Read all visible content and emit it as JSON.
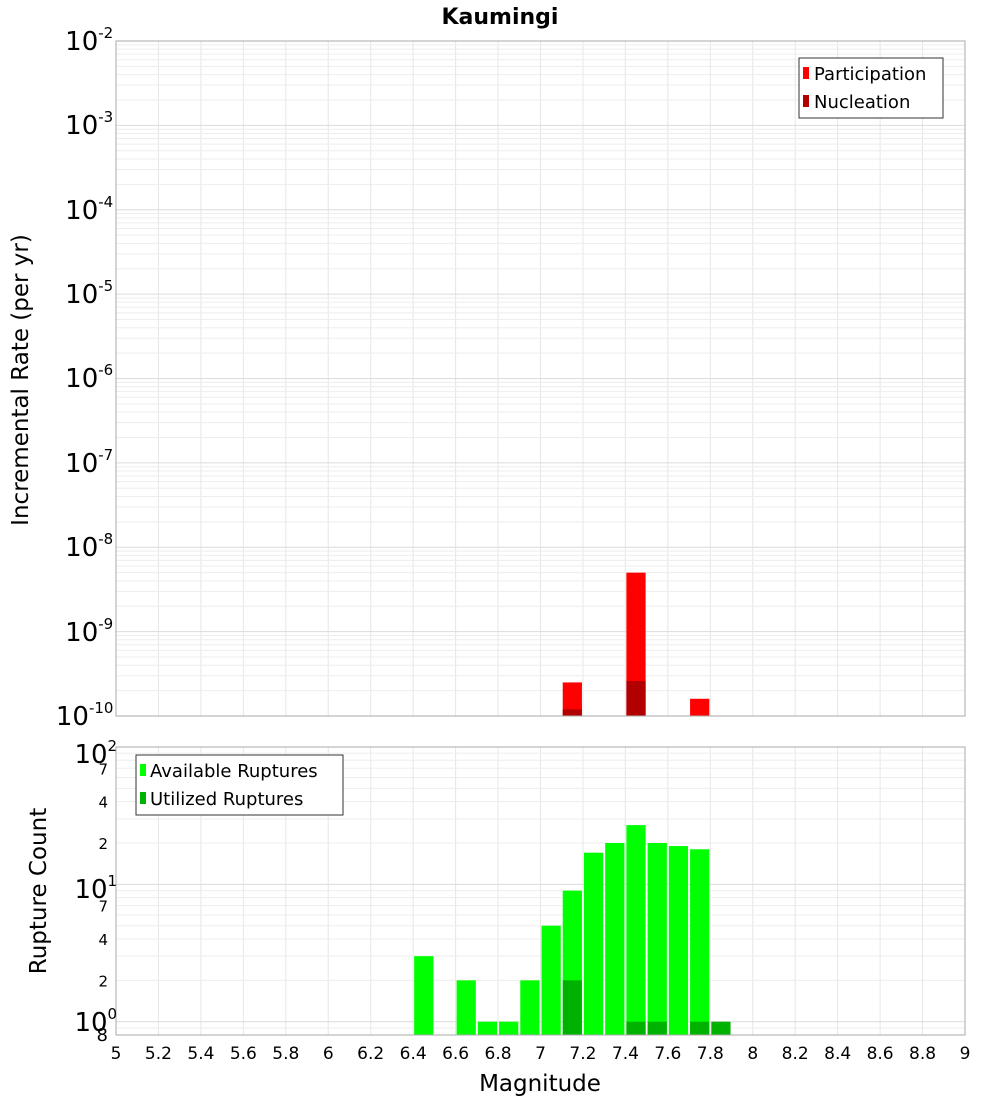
{
  "chart_data": [
    {
      "type": "bar",
      "title": "Kaumingi",
      "ylabel": "Incremental Rate (per yr)",
      "xlabel": "",
      "yscale": "log",
      "ylim": [
        1e-10,
        0.01
      ],
      "xlim": [
        5,
        9
      ],
      "grid": true,
      "legend_position": "top-right",
      "y_major_ticks": [
        {
          "base": "10",
          "exp": "-10"
        },
        {
          "base": "10",
          "exp": "-9"
        },
        {
          "base": "10",
          "exp": "-8"
        },
        {
          "base": "10",
          "exp": "-7"
        },
        {
          "base": "10",
          "exp": "-6"
        },
        {
          "base": "10",
          "exp": "-5"
        },
        {
          "base": "10",
          "exp": "-4"
        },
        {
          "base": "10",
          "exp": "-3"
        },
        {
          "base": "10",
          "exp": "-2"
        }
      ],
      "series": [
        {
          "name": "Participation",
          "color": "#ff0000",
          "points": [
            {
              "x": 7.15,
              "y": 2.5e-10
            },
            {
              "x": 7.45,
              "y": 5e-09
            },
            {
              "x": 7.75,
              "y": 1.6e-10
            }
          ]
        },
        {
          "name": "Nucleation",
          "color": "#b20000",
          "points": [
            {
              "x": 7.15,
              "y": 1.2e-10
            },
            {
              "x": 7.45,
              "y": 2.6e-10
            }
          ]
        }
      ]
    },
    {
      "type": "bar",
      "ylabel": "Rupture Count",
      "xlabel": "Magnitude",
      "yscale": "log",
      "ylim": [
        0.8,
        100
      ],
      "xlim": [
        5,
        9
      ],
      "grid": true,
      "legend_position": "top-left",
      "x_ticks": [
        "5",
        "5.2",
        "5.4",
        "5.6",
        "5.8",
        "6",
        "6.2",
        "6.4",
        "6.6",
        "6.8",
        "7",
        "7.2",
        "7.4",
        "7.6",
        "7.8",
        "8",
        "8.2",
        "8.4",
        "8.6",
        "8.8",
        "9"
      ],
      "y_major_ticks": [
        {
          "base": "10",
          "exp": "0"
        },
        {
          "base": "10",
          "exp": "1"
        },
        {
          "base": "10",
          "exp": "2"
        }
      ],
      "y_minor_tick_labels": [
        "8",
        "2",
        "4",
        "7",
        "2",
        "4",
        "7"
      ],
      "series": [
        {
          "name": "Available Ruptures",
          "color": "#00ff00",
          "points": [
            {
              "x": 6.45,
              "y": 3
            },
            {
              "x": 6.65,
              "y": 2
            },
            {
              "x": 6.75,
              "y": 1
            },
            {
              "x": 6.85,
              "y": 1
            },
            {
              "x": 6.95,
              "y": 2
            },
            {
              "x": 7.05,
              "y": 5
            },
            {
              "x": 7.15,
              "y": 9
            },
            {
              "x": 7.25,
              "y": 17
            },
            {
              "x": 7.35,
              "y": 20
            },
            {
              "x": 7.45,
              "y": 27
            },
            {
              "x": 7.55,
              "y": 20
            },
            {
              "x": 7.65,
              "y": 19
            },
            {
              "x": 7.75,
              "y": 18
            }
          ]
        },
        {
          "name": "Utilized Ruptures",
          "color": "#00b200",
          "points": [
            {
              "x": 7.15,
              "y": 2
            },
            {
              "x": 7.45,
              "y": 1
            },
            {
              "x": 7.55,
              "y": 1
            },
            {
              "x": 7.75,
              "y": 1
            },
            {
              "x": 7.85,
              "y": 1
            }
          ]
        }
      ]
    }
  ]
}
